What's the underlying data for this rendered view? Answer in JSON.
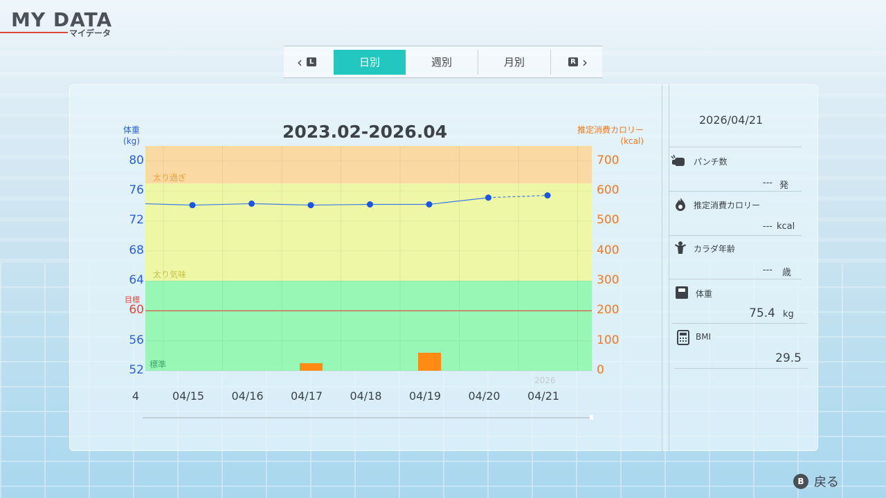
{
  "header": {
    "title": "MY DATA",
    "subtitle": "マイデータ"
  },
  "tabs": {
    "prev_key": "L",
    "next_key": "R",
    "items": [
      {
        "label": "日別",
        "active": true
      },
      {
        "label": "週別",
        "active": false
      },
      {
        "label": "月別",
        "active": false
      }
    ]
  },
  "chart": {
    "title": "2023.02-2026.04",
    "y_left_title_line1": "体重",
    "y_left_title_line2": "(kg)",
    "y_right_title_line1": "推定消費カロリー",
    "y_right_title_line2": "(kcal)",
    "goal_label": "目標",
    "goal_value": "60",
    "zones": {
      "over": "太り過ぎ",
      "slightly": "太り気味",
      "normal": "標準"
    },
    "partial_left_tick": "4",
    "year_label": "2026"
  },
  "chart_data": {
    "type": "line",
    "categories": [
      "04/15",
      "04/16",
      "04/17",
      "04/18",
      "04/19",
      "04/20",
      "04/21"
    ],
    "y_left_ticks": [
      80,
      76,
      72,
      68,
      64,
      60,
      56,
      52
    ],
    "y_right_ticks": [
      700,
      600,
      500,
      400,
      300,
      200,
      100,
      0
    ],
    "ylim_left": [
      52,
      82
    ],
    "ylim_right": [
      0,
      750
    ],
    "series": [
      {
        "axis": "left",
        "type": "line",
        "values": [
          74.1,
          74.3,
          74.1,
          74.2,
          74.2,
          75.1,
          75.4
        ],
        "color": "#1a56e0"
      },
      {
        "axis": "right",
        "type": "bar",
        "values": [
          0,
          0,
          25,
          0,
          60,
          0,
          0
        ],
        "color": "#ff8a14"
      }
    ],
    "goal": 60,
    "zones": [
      {
        "label": "太り過ぎ",
        "from": 77,
        "to": 82,
        "color": "#fbd9a3"
      },
      {
        "label": "太り気味",
        "from": 64,
        "to": 77,
        "color": "#eef7a6"
      },
      {
        "label": "標準",
        "from": 52,
        "to": 64,
        "color": "#98f7b4"
      }
    ]
  },
  "stats": {
    "date": "2026/04/21",
    "punch_label": "パンチ数",
    "punch_value": "---",
    "punch_unit": "発",
    "kcal_label": "推定消費カロリー",
    "kcal_value": "---",
    "kcal_unit": "kcal",
    "age_label": "カラダ年齢",
    "age_value": "---",
    "age_unit": "歳",
    "weight_label": "体重",
    "weight_value": "75.4",
    "weight_unit": "kg",
    "bmi_label": "BMI",
    "bmi_value": "29.5"
  },
  "footer": {
    "back_key": "B",
    "back_label": "戻る"
  }
}
